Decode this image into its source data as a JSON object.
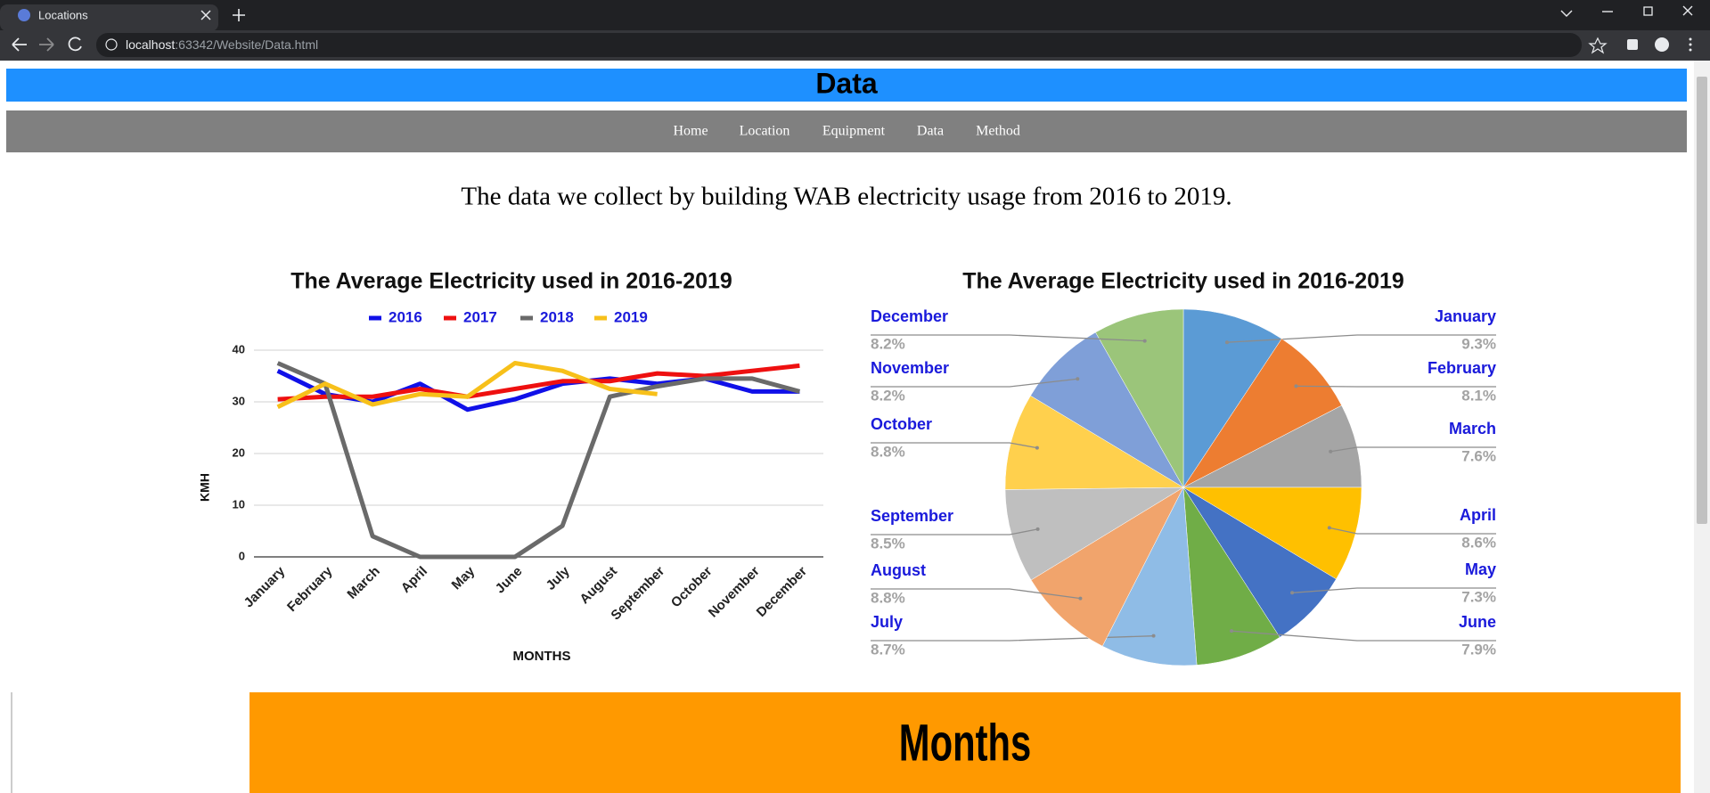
{
  "browser": {
    "tab_title": "Locations",
    "url_host": "localhost",
    "url_path": ":63342/Website/Data.html"
  },
  "header": {
    "title": "Data"
  },
  "nav": [
    "Home",
    "Location",
    "Equipment",
    "Data",
    "Method"
  ],
  "intro": "The data we collect by building WAB electricity usage from 2016 to 2019.",
  "chart_data": [
    {
      "type": "line",
      "title": "The Average Electricity used in 2016-2019",
      "x_label": "MONTHS",
      "y_label": "KMH",
      "categories": [
        "January",
        "February",
        "March",
        "April",
        "May",
        "June",
        "July",
        "August",
        "September",
        "October",
        "November",
        "December"
      ],
      "series": [
        {
          "name": "2016",
          "color": "#1010e8",
          "values": [
            36,
            31.5,
            30,
            33.5,
            28.5,
            30.5,
            33.5,
            34.5,
            33.5,
            34.5,
            32,
            32
          ]
        },
        {
          "name": "2017",
          "color": "#ee1010",
          "values": [
            30.5,
            31,
            31,
            32.5,
            31,
            32.5,
            34,
            34,
            35.5,
            35,
            36,
            37
          ]
        },
        {
          "name": "2018",
          "color": "#6a6a6a",
          "values": [
            37.5,
            33.5,
            4,
            0,
            0,
            0,
            6,
            31,
            33,
            34.5,
            34.5,
            32
          ]
        },
        {
          "name": "2019",
          "color": "#f7c01a",
          "values": [
            29,
            33.5,
            29.5,
            31.5,
            31,
            37.5,
            36,
            32.5,
            31.5,
            null,
            null,
            null
          ]
        }
      ],
      "ylim": [
        0,
        40
      ],
      "yticks": [
        0,
        10,
        20,
        30,
        40
      ],
      "grid": true,
      "legend": "top"
    },
    {
      "type": "pie",
      "title": "The Average Electricity used in 2016-2019",
      "categories": [
        "January",
        "February",
        "March",
        "April",
        "May",
        "June",
        "July",
        "August",
        "September",
        "October",
        "November",
        "December"
      ],
      "values": [
        9.3,
        8.1,
        7.6,
        8.6,
        7.3,
        7.9,
        8.7,
        8.8,
        8.5,
        8.8,
        8.2,
        8.2
      ],
      "value_labels": [
        "9.3%",
        "8.1%",
        "7.6%",
        "8.6%",
        "7.3%",
        "7.9%",
        "8.7%",
        "8.8%",
        "8.5%",
        "8.8%",
        "8.2%",
        "8.2%"
      ],
      "colors": [
        "#5b9bd5",
        "#ed7d31",
        "#a5a5a5",
        "#ffc000",
        "#4472c4",
        "#70ad47",
        "#8fbce6",
        "#f1a46c",
        "#bfbfbf",
        "#ffd04d",
        "#7f9fd8",
        "#9bc57a"
      ]
    }
  ],
  "banner": {
    "title": "Months"
  }
}
